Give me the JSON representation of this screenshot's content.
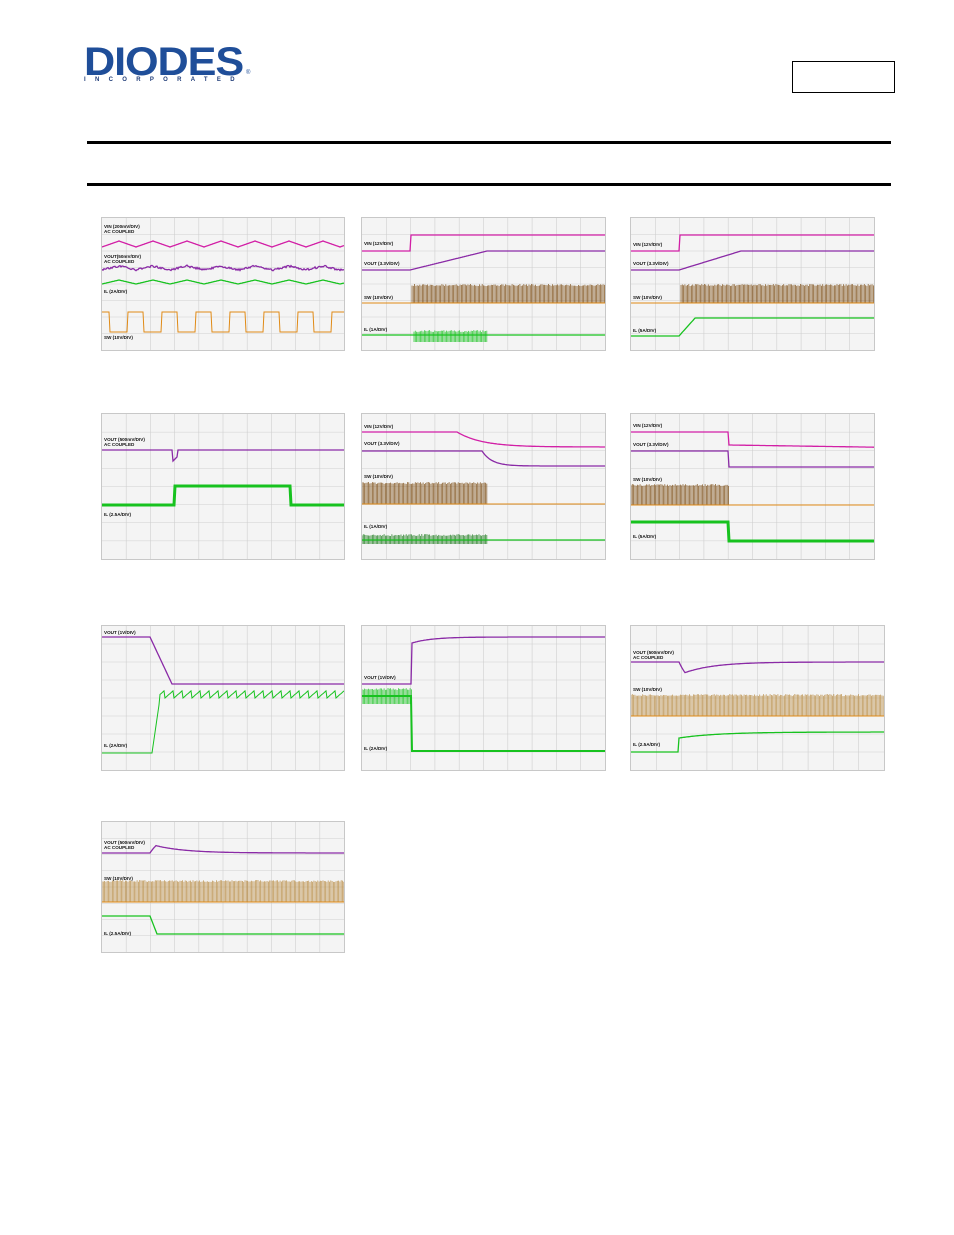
{
  "header": {
    "logo_text": "DIODES",
    "logo_subtext": "INCORPORATED",
    "logo_mark": "®"
  },
  "scopes": [
    {
      "id": "s1",
      "labels": [
        {
          "text": "VIN (200mV/DIV)\nAC COUPLED"
        },
        {
          "text": "VOUT(50mV/DIV)\nAC COUPLED"
        },
        {
          "text": "IL (2A/DIV)"
        },
        {
          "text": "SW (10V/DIV)"
        }
      ]
    },
    {
      "id": "s2",
      "labels": [
        {
          "text": "VIN (12V/DIV)"
        },
        {
          "text": "VOUT (3.3V/DIV)"
        },
        {
          "text": "SW (10V/DIV)"
        },
        {
          "text": "IL (1A/DIV)"
        }
      ]
    },
    {
      "id": "s3",
      "labels": [
        {
          "text": "VIN (12V/DIV)"
        },
        {
          "text": "VOUT (3.3V/DIV)"
        },
        {
          "text": "SW (10V/DIV)"
        },
        {
          "text": "IL (5A/DIV)"
        }
      ]
    },
    {
      "id": "s4",
      "labels": [
        {
          "text": "VOUT (500mV/DIV)\nAC COUPLED"
        },
        {
          "text": "IL (2.5A/DIV)"
        }
      ]
    },
    {
      "id": "s5",
      "labels": [
        {
          "text": "VIN (12V/DIV)"
        },
        {
          "text": "VOUT (3.3V/DIV)"
        },
        {
          "text": "SW (10V/DIV)"
        },
        {
          "text": "IL (1A/DIV)"
        }
      ]
    },
    {
      "id": "s6",
      "labels": [
        {
          "text": "VIN (12V/DIV)"
        },
        {
          "text": "VOUT (3.3V/DIV)"
        },
        {
          "text": "SW (10V/DIV)"
        },
        {
          "text": "IL (5A/DIV)"
        }
      ]
    },
    {
      "id": "s7",
      "labels": [
        {
          "text": "VOUT (1V/DIV)"
        },
        {
          "text": "IL (2A/DIV)"
        }
      ]
    },
    {
      "id": "s8",
      "labels": [
        {
          "text": "VOUT (1V/DIV)"
        },
        {
          "text": "IL (2A/DIV)"
        }
      ]
    },
    {
      "id": "s9",
      "labels": [
        {
          "text": "VOUT (500mV/DIV)\nAC COUPLED"
        },
        {
          "text": "SW (10V/DIV)"
        },
        {
          "text": "IL (2.5A/DIV)"
        }
      ]
    },
    {
      "id": "s10",
      "labels": [
        {
          "text": "VOUT (500mV/DIV)\nAC COUPLED"
        },
        {
          "text": "SW (10V/DIV)"
        },
        {
          "text": "IL (2.5A/DIV)"
        }
      ]
    }
  ],
  "colors": {
    "magenta": "#d21fa6",
    "purple": "#8a2aa6",
    "green": "#17c21f",
    "orange": "#e08a16",
    "brown": "#7a4a10"
  }
}
